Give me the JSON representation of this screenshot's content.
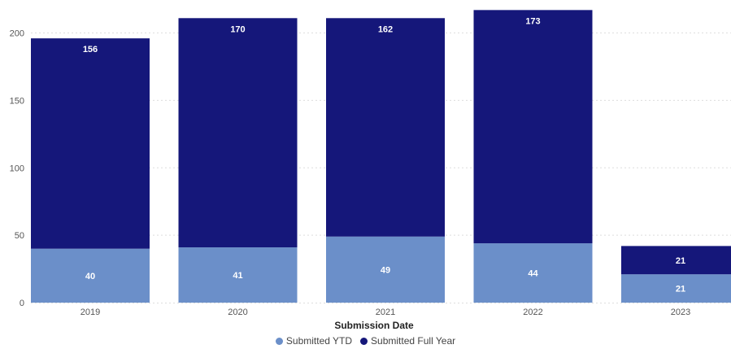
{
  "chart_data": {
    "type": "bar",
    "stacked": true,
    "categories": [
      "2019",
      "2020",
      "2021",
      "2022",
      "2023"
    ],
    "series": [
      {
        "name": "Submitted YTD",
        "values": [
          40,
          41,
          49,
          44,
          21
        ],
        "color": "#6b8fc9"
      },
      {
        "name": "Submitted Full Year",
        "values": [
          156,
          170,
          162,
          173,
          21
        ],
        "color": "#15177a"
      }
    ],
    "xlabel": "Submission Date",
    "ylabel": "",
    "ylim": [
      0,
      216
    ],
    "yticks": [
      0,
      50,
      100,
      150,
      200
    ],
    "grid": true,
    "legend_position": "bottom-center"
  }
}
